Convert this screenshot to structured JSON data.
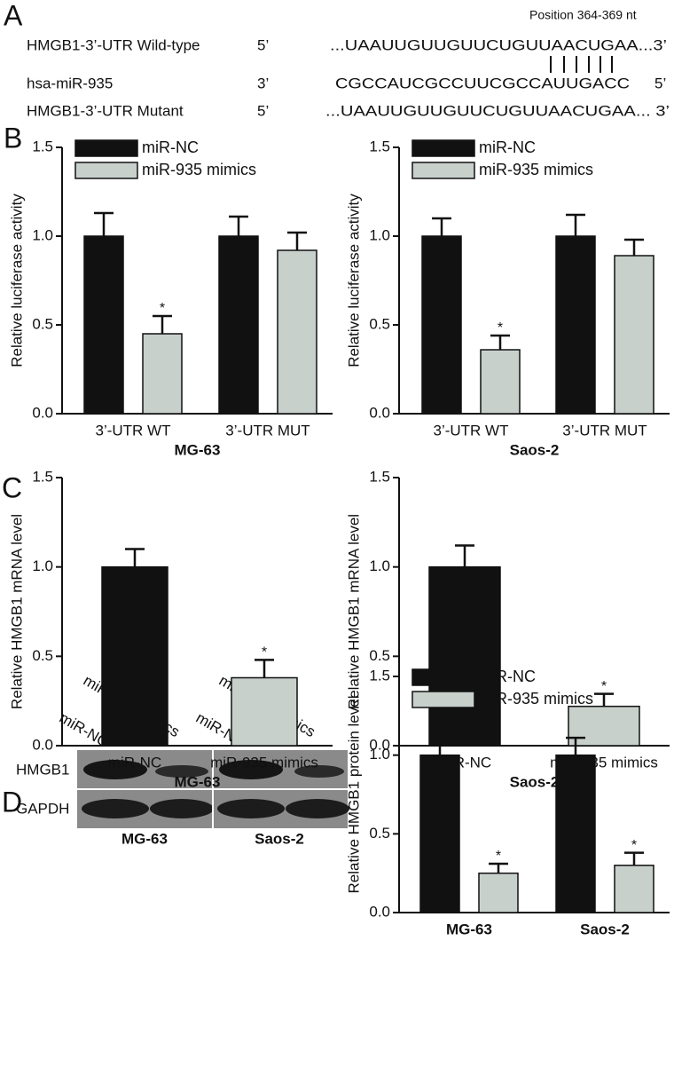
{
  "panel_labels": [
    "A",
    "B",
    "C",
    "D"
  ],
  "sequence": {
    "position": "Position 364-369 nt",
    "rows": [
      {
        "name": "HMGB1-3’-UTR Wild-type",
        "end": "5’",
        "seq": "...UAAUUGUUGUUCUGUUAACUGAA...3’"
      },
      {
        "name": "hsa-miR-935",
        "end": "3’",
        "seq": "CGCCAUCGCCUUCGCCAUUGACC",
        "end_right": "5’"
      },
      {
        "name": "HMGB1-3’-UTR Mutant",
        "end": "5’",
        "seq": "...UAAUUGUUGUUCUGUUAACUGAA... 3’"
      }
    ]
  },
  "blot": {
    "lanes": [
      "miR-NC",
      "miR-935 mimics",
      "miR-NC",
      "miR-935 mimics"
    ],
    "rows": [
      "HMGB1",
      "GAPDH"
    ],
    "groups": [
      "MG-63",
      "Saos-2"
    ]
  },
  "chart_data": [
    {
      "type": "bar",
      "y_label": "Relative luciferase activity",
      "x_label": "MG-63",
      "categories": [
        "3’-UTR WT",
        "3’-UTR MUT"
      ],
      "series": [
        {
          "name": "miR-NC",
          "color": "#111111",
          "values": [
            1.0,
            1.0
          ],
          "errors": [
            0.13,
            0.11
          ],
          "significance": [
            null,
            null
          ]
        },
        {
          "name": "miR-935 mimics",
          "color": "#c8d0cc",
          "values": [
            0.45,
            0.92
          ],
          "errors": [
            0.1,
            0.1
          ],
          "significance": [
            "*",
            null
          ]
        }
      ],
      "ylim": [
        0,
        1.5
      ],
      "yticks": [
        {
          "value": 0,
          "label": "0.0"
        },
        0.5,
        {
          "value": 1,
          "label": "1.0"
        },
        1.5
      ],
      "legend": "top-left"
    },
    {
      "type": "bar",
      "y_label": "Relative luciferase activity",
      "x_label": "Saos-2",
      "categories": [
        "3’-UTR WT",
        "3’-UTR MUT"
      ],
      "series": [
        {
          "name": "miR-NC",
          "color": "#111111",
          "values": [
            1.0,
            1.0
          ],
          "errors": [
            0.1,
            0.12
          ],
          "significance": [
            null,
            null
          ]
        },
        {
          "name": "miR-935 mimics",
          "color": "#c8d0cc",
          "values": [
            0.36,
            0.89
          ],
          "errors": [
            0.08,
            0.09
          ],
          "significance": [
            "*",
            null
          ]
        }
      ],
      "ylim": [
        0,
        1.5
      ],
      "yticks": [
        {
          "value": 0,
          "label": "0.0"
        },
        0.5,
        {
          "value": 1,
          "label": "1.0"
        },
        1.5
      ],
      "legend": "top-left"
    },
    {
      "type": "bar",
      "y_label": "Relative HMGB1 mRNA level",
      "x_label": "MG-63",
      "categories": [
        "miR-NC",
        "miR-935 mimics"
      ],
      "values": [
        1.0,
        0.38
      ],
      "errors": [
        0.1,
        0.1
      ],
      "colors": [
        "#111111",
        "#c8d0cc"
      ],
      "significance": [
        null,
        "*"
      ],
      "ylim": [
        0,
        1.5
      ],
      "yticks": [
        {
          "value": 0,
          "label": "0.0"
        },
        0.5,
        {
          "value": 1,
          "label": "1.0"
        },
        1.5
      ]
    },
    {
      "type": "bar",
      "y_label": "Relative HMGB1 mRNA level",
      "x_label": "Saos-2",
      "categories": [
        "miR-NC",
        "miR-935 mimics"
      ],
      "values": [
        1.0,
        0.22
      ],
      "errors": [
        0.12,
        0.07
      ],
      "colors": [
        "#111111",
        "#c8d0cc"
      ],
      "significance": [
        null,
        "*"
      ],
      "ylim": [
        0,
        1.5
      ],
      "yticks": [
        {
          "value": 0,
          "label": "0.0"
        },
        0.5,
        {
          "value": 1,
          "label": "1.0"
        },
        1.5
      ]
    },
    {
      "type": "bar",
      "y_label": "Relative HMGB1 protein level",
      "categories": [
        "MG-63",
        "Saos-2"
      ],
      "series": [
        {
          "name": "miR-NC",
          "color": "#111111",
          "values": [
            1.0,
            1.0
          ],
          "errors": [
            0.12,
            0.11
          ],
          "significance": [
            null,
            null
          ]
        },
        {
          "name": "miR-935 mimics",
          "color": "#c8d0cc",
          "values": [
            0.25,
            0.3
          ],
          "errors": [
            0.06,
            0.08
          ],
          "significance": [
            "*",
            "*"
          ]
        }
      ],
      "ylim": [
        0,
        1.5
      ],
      "yticks": [
        {
          "value": 0,
          "label": "0.0"
        },
        0.5,
        {
          "value": 1,
          "label": "1.0"
        },
        1.5
      ],
      "legend": "top-left"
    }
  ]
}
